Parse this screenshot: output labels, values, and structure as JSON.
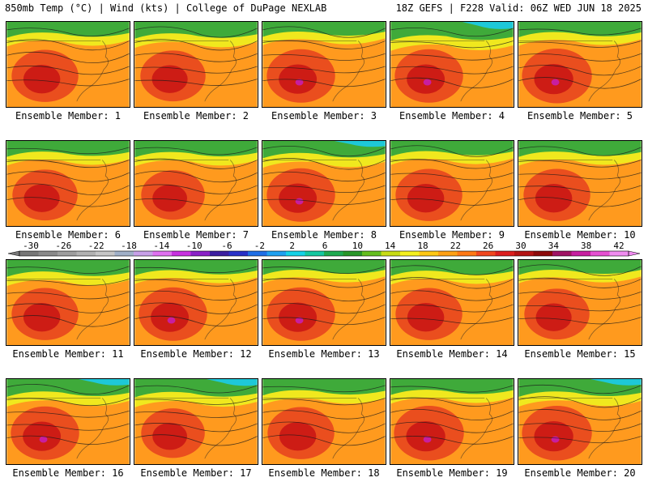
{
  "header": {
    "left": "850mb Temp (°C) | Wind (kts) | College of DuPage NEXLAB",
    "right": "18Z GEFS | F228 Valid: 06Z WED JUN 18 2025"
  },
  "ensemble_caption_prefix": "Ensemble Member: ",
  "members": [
    {
      "number": "1",
      "heat": 0.8,
      "cool": 0.5
    },
    {
      "number": "2",
      "heat": 0.75,
      "cool": 0.6
    },
    {
      "number": "3",
      "heat": 0.85,
      "cool": 0.4
    },
    {
      "number": "4",
      "heat": 0.85,
      "cool": 0.8
    },
    {
      "number": "5",
      "heat": 0.9,
      "cool": 0.45
    },
    {
      "number": "6",
      "heat": 0.75,
      "cool": 0.5
    },
    {
      "number": "7",
      "heat": 0.7,
      "cool": 0.55
    },
    {
      "number": "8",
      "heat": 0.85,
      "cool": 0.65
    },
    {
      "number": "9",
      "heat": 0.8,
      "cool": 0.45
    },
    {
      "number": "10",
      "heat": 0.8,
      "cool": 0.5
    },
    {
      "number": "11",
      "heat": 0.8,
      "cool": 0.6
    },
    {
      "number": "12",
      "heat": 0.85,
      "cool": 0.45
    },
    {
      "number": "13",
      "heat": 0.85,
      "cool": 0.4
    },
    {
      "number": "14",
      "heat": 0.8,
      "cool": 0.5
    },
    {
      "number": "15",
      "heat": 0.75,
      "cool": 0.4
    },
    {
      "number": "16",
      "heat": 0.85,
      "cool": 0.7
    },
    {
      "number": "17",
      "heat": 0.7,
      "cool": 0.75
    },
    {
      "number": "18",
      "heat": 0.8,
      "cool": 0.55
    },
    {
      "number": "19",
      "heat": 0.9,
      "cool": 0.5
    },
    {
      "number": "20",
      "heat": 0.9,
      "cool": 0.7
    }
  ],
  "color_scale": {
    "labels": [
      "-30",
      "-26",
      "-22",
      "-18",
      "-14",
      "-10",
      "-6",
      "-2",
      "2",
      "6",
      "10",
      "14",
      "18",
      "22",
      "26",
      "30",
      "34",
      "38",
      "42"
    ],
    "colors": [
      "#777777",
      "#8a8a8a",
      "#9e9e9e",
      "#b2b2b2",
      "#c6c6c6",
      "#a0b0c8",
      "#c8a0e8",
      "#e070f0",
      "#c830e0",
      "#8a20c8",
      "#3c1ea0",
      "#2830c8",
      "#1e6ee6",
      "#1ea0f0",
      "#14d2e6",
      "#14c8a0",
      "#1eaa50",
      "#289628",
      "#64be1e",
      "#c8dc14",
      "#f5f01e",
      "#ffc814",
      "#ffa014",
      "#ff7814",
      "#f0461e",
      "#dc1e1e",
      "#b41414",
      "#8c0a0a",
      "#a01464",
      "#c81ea0",
      "#e650d2",
      "#f08cf0"
    ]
  }
}
